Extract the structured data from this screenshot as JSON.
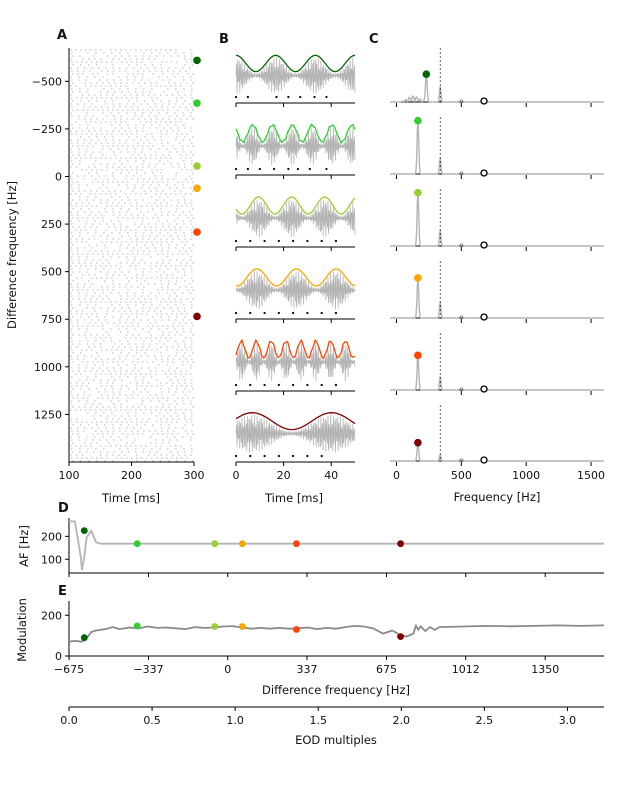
{
  "panels": {
    "a": "A",
    "b": "B",
    "c": "C",
    "d": "D",
    "e": "E"
  },
  "colors": {
    "gray": "#b4b4b4",
    "dark_gray": "#8a8a8a",
    "dots": [
      "#006400",
      "#32cd32",
      "#9acd32",
      "#ffa500",
      "#ff4500",
      "#800000"
    ]
  },
  "chart_data": [
    {
      "id": "A",
      "type": "scatter",
      "title": "",
      "xlabel": "Time [ms]",
      "ylabel": "Difference frequency [Hz]",
      "xlim": [
        100,
        300
      ],
      "ylim": [
        -675,
        1500
      ],
      "y_inverted": true,
      "xticks": [
        100,
        200,
        300
      ],
      "xtick_labels": [
        "100",
        "200",
        "300"
      ],
      "yticks": [
        -500,
        -250,
        0,
        250,
        500,
        750,
        1000,
        1250
      ],
      "ytick_labels": [
        "−500",
        "−250",
        "0",
        "250",
        "500",
        "750",
        "1000",
        "1250"
      ],
      "marker_dfs": [
        -610,
        -385,
        -55,
        62,
        292,
        735
      ]
    },
    {
      "id": "B",
      "type": "line",
      "title": "",
      "xlabel": "Time [ms]",
      "xlim": [
        0,
        50
      ],
      "xticks": [
        0,
        20,
        40
      ],
      "xtick_labels": [
        "0",
        "20",
        "40"
      ],
      "subplots": [
        {
          "envelope_cycles": 3,
          "spikes_ms": [
            0,
            5,
            17,
            22,
            27,
            33,
            38
          ]
        },
        {
          "envelope_cycles": 6,
          "spikes_ms": [
            0,
            5,
            10,
            16,
            22,
            26,
            31,
            38
          ]
        },
        {
          "envelope_cycles": 3.6,
          "spikes_ms": [
            0,
            6,
            12,
            18,
            24,
            30,
            36,
            42
          ]
        },
        {
          "envelope_cycles": 3,
          "spikes_ms": [
            0,
            6,
            12,
            18,
            24,
            30,
            36,
            42
          ]
        },
        {
          "envelope_cycles": 8,
          "spikes_ms": [
            0,
            6,
            12,
            18,
            24,
            30,
            36,
            42
          ]
        },
        {
          "envelope_cycles": 1.5,
          "spikes_ms": [
            0,
            6,
            12,
            18,
            24,
            30,
            36
          ]
        }
      ]
    },
    {
      "id": "C",
      "type": "line",
      "title": "",
      "xlabel": "Frequency [Hz]",
      "xlim": [
        -50,
        1600
      ],
      "xticks": [
        0,
        500,
        1000,
        1500
      ],
      "xtick_labels": [
        "0",
        "500",
        "1000",
        "1500"
      ],
      "eod_line_hz": 337,
      "open_marker_hz": 675,
      "subplots": [
        {
          "peak_hz": 230,
          "peak_rel": 0.55,
          "eod_peak_rel": 0.3
        },
        {
          "peak_hz": 165,
          "peak_rel": 1.0,
          "eod_peak_rel": 0.3
        },
        {
          "peak_hz": 165,
          "peak_rel": 1.0,
          "eod_peak_rel": 0.3
        },
        {
          "peak_hz": 165,
          "peak_rel": 0.75,
          "eod_peak_rel": 0.3
        },
        {
          "peak_hz": 165,
          "peak_rel": 0.65,
          "eod_peak_rel": 0.25
        },
        {
          "peak_hz": 165,
          "peak_rel": 0.35,
          "eod_peak_rel": 0.12
        }
      ]
    },
    {
      "id": "D",
      "type": "line",
      "title": "",
      "ylabel": "AF [Hz]",
      "xlim": [
        -675,
        1600
      ],
      "ylim": [
        40,
        280
      ],
      "yticks": [
        100,
        200
      ],
      "ytick_labels": [
        "100",
        "200"
      ],
      "line": {
        "x": [
          -675,
          -650,
          -625,
          -620,
          -610,
          -600,
          -580,
          -560,
          -540,
          -500,
          -400,
          -200,
          0,
          200,
          400,
          800,
          1200,
          1600
        ],
        "y": [
          265,
          265,
          110,
          55,
          110,
          195,
          225,
          175,
          168,
          168,
          168,
          168,
          168,
          168,
          168,
          168,
          168,
          168
        ]
      },
      "markers": [
        {
          "x": -610,
          "y": 225
        },
        {
          "x": -385,
          "y": 168
        },
        {
          "x": -55,
          "y": 168
        },
        {
          "x": 62,
          "y": 168
        },
        {
          "x": 292,
          "y": 168
        },
        {
          "x": 735,
          "y": 168
        }
      ]
    },
    {
      "id": "E",
      "type": "line",
      "title": "",
      "xlabel": "Difference frequency [Hz]",
      "ylabel": "Modulation",
      "xlim": [
        -675,
        1600
      ],
      "ylim": [
        0,
        270
      ],
      "xticks": [
        -675,
        -337,
        0,
        337,
        675,
        1012,
        1350
      ],
      "xtick_labels": [
        "−675",
        "−337",
        "0",
        "337",
        "675",
        "1012",
        "1350"
      ],
      "yticks": [
        0,
        200
      ],
      "ytick_labels": [
        "0",
        "200"
      ],
      "line": {
        "x": [
          -675,
          -650,
          -620,
          -600,
          -580,
          -560,
          -520,
          -490,
          -460,
          -420,
          -380,
          -340,
          -300,
          -260,
          -220,
          -180,
          -140,
          -100,
          -60,
          -20,
          20,
          60,
          100,
          140,
          180,
          220,
          260,
          300,
          340,
          380,
          420,
          460,
          500,
          540,
          580,
          620,
          660,
          700,
          730,
          760,
          790,
          800,
          810,
          820,
          840,
          860,
          880,
          900,
          1000,
          1100,
          1200,
          1300,
          1400,
          1500,
          1600
        ],
        "y": [
          70,
          74,
          70,
          88,
          118,
          125,
          132,
          142,
          132,
          140,
          135,
          145,
          138,
          140,
          136,
          132,
          142,
          138,
          140,
          145,
          147,
          140,
          134,
          138,
          134,
          138,
          134,
          136,
          140,
          132,
          138,
          134,
          142,
          148,
          145,
          135,
          110,
          125,
          105,
          95,
          110,
          150,
          128,
          146,
          122,
          142,
          128,
          142,
          145,
          148,
          146,
          148,
          150,
          148,
          150
        ]
      },
      "markers": [
        {
          "x": -610,
          "y": 90
        },
        {
          "x": -385,
          "y": 148
        },
        {
          "x": -55,
          "y": 145
        },
        {
          "x": 62,
          "y": 145
        },
        {
          "x": 292,
          "y": 130
        },
        {
          "x": 735,
          "y": 95
        }
      ]
    },
    {
      "id": "E_secondary",
      "type": "line",
      "title": "",
      "xlabel": "EOD multiples",
      "xlim": [
        0,
        3.22
      ],
      "xticks": [
        0.0,
        0.5,
        1.0,
        1.5,
        2.0,
        2.5,
        3.0
      ],
      "xtick_labels": [
        "0.0",
        "0.5",
        "1.0",
        "1.5",
        "2.0",
        "2.5",
        "3.0"
      ]
    }
  ]
}
